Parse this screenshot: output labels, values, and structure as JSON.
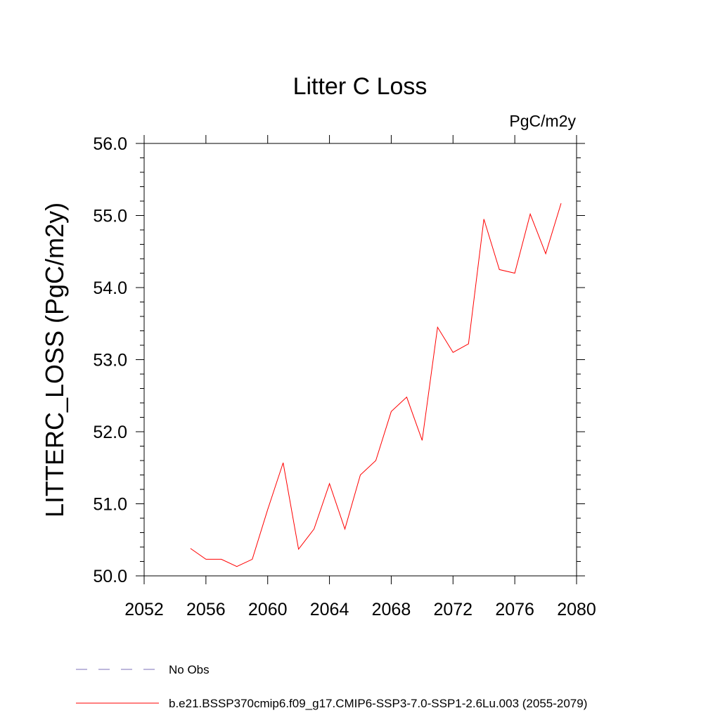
{
  "chart_data": {
    "type": "line",
    "title": "Litter C Loss",
    "units": "PgC/m2y",
    "ylabel": "LITTERC_LOSS  (PgC/m2y)",
    "xlabel": "",
    "xlim": [
      2052,
      2080
    ],
    "ylim": [
      50.0,
      56.0
    ],
    "x_ticks": [
      "2052",
      "2056",
      "2060",
      "2064",
      "2068",
      "2072",
      "2076",
      "2080"
    ],
    "y_ticks": [
      "50.0",
      "51.0",
      "52.0",
      "53.0",
      "54.0",
      "55.0",
      "56.0"
    ],
    "grid": false,
    "legend_position": "bottom",
    "series": [
      {
        "name": "No Obs",
        "color": "#7b6fb8",
        "line_style": "dashed",
        "x": [],
        "values": []
      },
      {
        "name": "b.e21.BSSP370cmip6.f09_g17.CMIP6-SSP3-7.0-SSP1-2.6Lu.003 (2055-2079)",
        "color": "#ff0000",
        "line_style": "solid",
        "x": [
          2055,
          2056,
          2057,
          2058,
          2059,
          2060,
          2061,
          2062,
          2063,
          2064,
          2065,
          2066,
          2067,
          2068,
          2069,
          2070,
          2071,
          2072,
          2073,
          2074,
          2075,
          2076,
          2077,
          2078,
          2079
        ],
        "values": [
          50.38,
          50.23,
          50.23,
          50.13,
          50.23,
          50.92,
          51.57,
          50.37,
          50.65,
          51.28,
          50.65,
          51.4,
          51.6,
          52.28,
          52.48,
          51.88,
          53.45,
          53.1,
          53.22,
          54.95,
          54.25,
          54.2,
          55.02,
          54.47,
          55.17
        ]
      }
    ]
  }
}
